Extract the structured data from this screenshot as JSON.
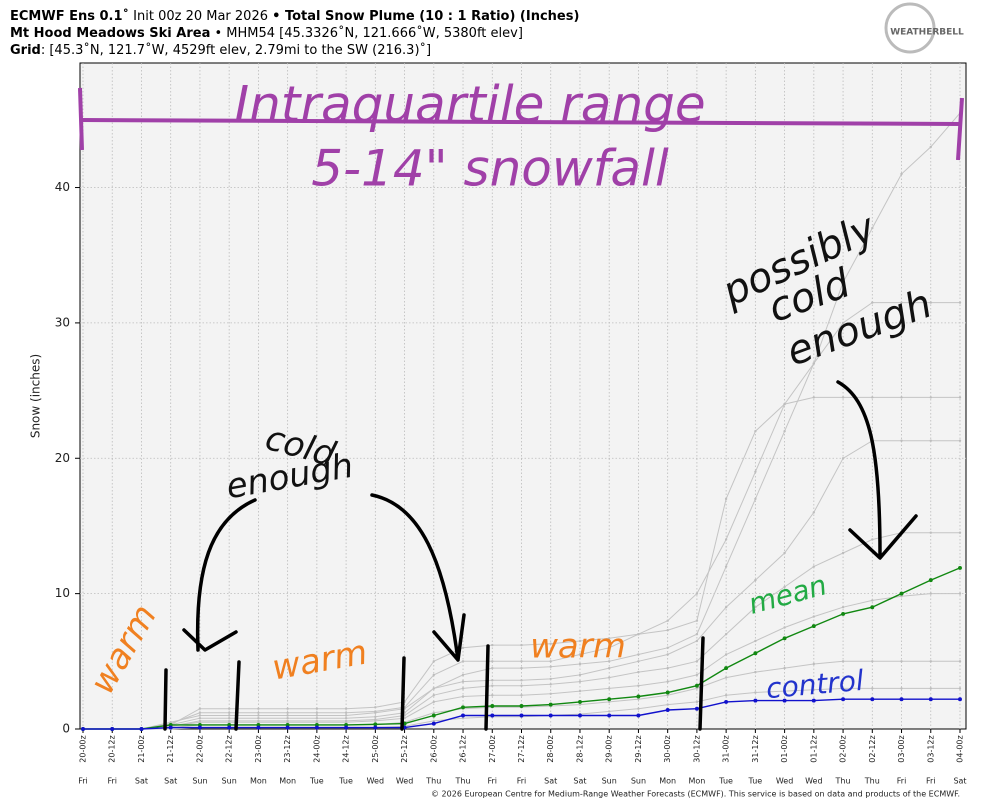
{
  "header": {
    "lines": [
      [
        {
          "text": "ECMWF Ens 0.1˚",
          "bold": true
        },
        {
          "text": " Init 00z 20 Mar 2026 ",
          "bold": false
        },
        {
          "text": "• Total Snow Plume (10 : 1 Ratio) (Inches)",
          "bold": true
        }
      ],
      [
        {
          "text": "Mt Hood Meadows Ski Area",
          "bold": true
        },
        {
          "text": " • MHM54 [45.3326˚N, 121.666˚W, 5380ft elev]",
          "bold": false
        }
      ],
      [
        {
          "text": "Grid",
          "bold": true
        },
        {
          "text": ": [45.3˚N, 121.7˚W, 4529ft elev, 2.79mi to the SW (216.3)˚]",
          "bold": false
        }
      ]
    ],
    "logo": "WEATHERBELL"
  },
  "chart_data": {
    "type": "line",
    "y_label": "Snow (inches)",
    "categories": [
      "20-00z",
      "20-12z",
      "21-00z",
      "21-12z",
      "22-00z",
      "22-12z",
      "23-00z",
      "23-12z",
      "24-00z",
      "24-12z",
      "25-00z",
      "25-12z",
      "26-00z",
      "26-12z",
      "27-00z",
      "27-12z",
      "28-00z",
      "28-12z",
      "29-00z",
      "29-12z",
      "30-00z",
      "30-12z",
      "31-00z",
      "31-12z",
      "01-00z",
      "01-12z",
      "02-00z",
      "02-12z",
      "03-00z",
      "03-12z",
      "04-00z"
    ],
    "days": [
      "Fri",
      "Fri",
      "Sat",
      "Sat",
      "Sun",
      "Sun",
      "Mon",
      "Mon",
      "Tue",
      "Tue",
      "Wed",
      "Wed",
      "Thu",
      "Thu",
      "Fri",
      "Fri",
      "Sat",
      "Sat",
      "Sun",
      "Sun",
      "Mon",
      "Mon",
      "Tue",
      "Tue",
      "Wed",
      "Wed",
      "Thu",
      "Thu",
      "Fri",
      "Fri",
      "Sat"
    ],
    "ylim": [
      0,
      49.2
    ],
    "yticks": [
      0,
      10,
      20,
      30,
      40
    ],
    "grid": true,
    "series": [
      {
        "color": "#c4c4c4",
        "values": [
          0,
          0,
          0,
          0.5,
          1,
          1,
          1,
          1,
          1,
          1,
          1.2,
          1.5,
          3,
          4,
          4.5,
          4.5,
          4.6,
          4.8,
          5,
          5.5,
          6,
          7,
          12,
          17,
          22,
          27,
          33,
          37,
          41,
          43,
          45.5
        ]
      },
      {
        "color": "#c4c4c4",
        "values": [
          0,
          0,
          0,
          0.4,
          1.2,
          1.2,
          1.2,
          1.2,
          1.2,
          1.2,
          1.3,
          1.6,
          4,
          5,
          5,
          5,
          5,
          5.5,
          6,
          7,
          8,
          10,
          14,
          19,
          24,
          27,
          30,
          31.5,
          31.5,
          31.5,
          31.5
        ]
      },
      {
        "color": "#c4c4c4",
        "values": [
          0,
          0,
          0,
          0.3,
          0.8,
          0.8,
          0.8,
          0.8,
          0.8,
          0.8,
          0.9,
          1.2,
          3,
          3.5,
          3.6,
          3.6,
          3.7,
          4,
          4.5,
          5,
          5.5,
          6.5,
          9,
          11,
          13,
          16,
          20,
          21.3,
          21.3,
          21.3,
          21.3
        ]
      },
      {
        "color": "#c4c4c4",
        "values": [
          0,
          0,
          0,
          0.3,
          1.5,
          1.5,
          1.5,
          1.5,
          1.5,
          1.5,
          1.6,
          2,
          5,
          6,
          6.2,
          6.2,
          6.3,
          6.5,
          6.7,
          7,
          7.3,
          8,
          17,
          22,
          24,
          24.5,
          24.5,
          24.5,
          24.5,
          24.5,
          24.5
        ]
      },
      {
        "color": "#c4c4c4",
        "values": [
          0,
          0,
          0,
          0.2,
          0.6,
          0.6,
          0.6,
          0.6,
          0.6,
          0.6,
          0.7,
          1,
          2.5,
          3,
          3.2,
          3.2,
          3.3,
          3.5,
          3.8,
          4.2,
          4.5,
          5,
          7,
          9,
          10.5,
          12,
          13,
          14,
          14.5,
          14.5,
          14.5
        ]
      },
      {
        "color": "#c4c4c4",
        "values": [
          0,
          0,
          0,
          0.2,
          0.5,
          0.5,
          0.5,
          0.5,
          0.5,
          0.5,
          0.6,
          0.8,
          2,
          2.4,
          2.5,
          2.5,
          2.6,
          2.8,
          3,
          3.2,
          3.5,
          4,
          5.5,
          6.5,
          7.5,
          8.3,
          9,
          9.5,
          9.8,
          10,
          10
        ]
      },
      {
        "color": "#c4c4c4",
        "values": [
          0,
          0,
          0,
          0.1,
          0.3,
          0.3,
          0.3,
          0.3,
          0.3,
          0.3,
          0.3,
          0.5,
          1.2,
          1.5,
          1.6,
          1.6,
          1.7,
          1.8,
          2,
          2.2,
          2.5,
          3,
          3.8,
          4.2,
          4.5,
          4.8,
          5,
          5,
          5,
          5,
          5
        ]
      },
      {
        "color": "#c4c4c4",
        "values": [
          0,
          0,
          0,
          0,
          0.1,
          0.1,
          0.1,
          0.1,
          0.1,
          0.1,
          0.1,
          0.2,
          0.6,
          0.8,
          0.9,
          0.9,
          1,
          1.1,
          1.3,
          1.5,
          1.8,
          2,
          2.5,
          2.7,
          2.8,
          2.9,
          3,
          3,
          3,
          3,
          3
        ]
      },
      {
        "color": "#118811",
        "values": [
          0,
          0,
          0,
          0.3,
          0.3,
          0.3,
          0.3,
          0.3,
          0.3,
          0.3,
          0.35,
          0.4,
          1.0,
          1.6,
          1.7,
          1.7,
          1.8,
          2.0,
          2.2,
          2.4,
          2.7,
          3.2,
          4.5,
          5.6,
          6.7,
          7.6,
          8.5,
          9.0,
          10.0,
          11.0,
          11.9
        ]
      },
      {
        "color": "#1111cc",
        "values": [
          0,
          0,
          0,
          0.1,
          0.1,
          0.1,
          0.1,
          0.1,
          0.1,
          0.1,
          0.1,
          0.1,
          0.4,
          1.0,
          1.0,
          1.0,
          1.0,
          1.0,
          1.0,
          1.0,
          1.4,
          1.5,
          2.0,
          2.1,
          2.1,
          2.1,
          2.2,
          2.2,
          2.2,
          2.2,
          2.2
        ]
      }
    ],
    "annotations": [
      {
        "text": "Intraquartile range",
        "color": "#a040a8"
      },
      {
        "text": "5-14\" snowfall",
        "color": "#a040a8"
      },
      {
        "text": "possibly",
        "color": "#111111"
      },
      {
        "text": "cold",
        "color": "#111111"
      },
      {
        "text": "enough",
        "color": "#111111"
      },
      {
        "text": "cold",
        "color": "#111111"
      },
      {
        "text": "enough",
        "color": "#111111"
      },
      {
        "text": "warm",
        "color": "#f08020"
      },
      {
        "text": "warm",
        "color": "#f08020"
      },
      {
        "text": "warm",
        "color": "#f08020"
      },
      {
        "text": "mean",
        "color": "#22aa44"
      },
      {
        "text": "control",
        "color": "#2233cc"
      }
    ],
    "footer": "© 2026 European Centre for Medium-Range Weather Forecasts (ECMWF). This service is based on data and products of the ECMWF."
  }
}
